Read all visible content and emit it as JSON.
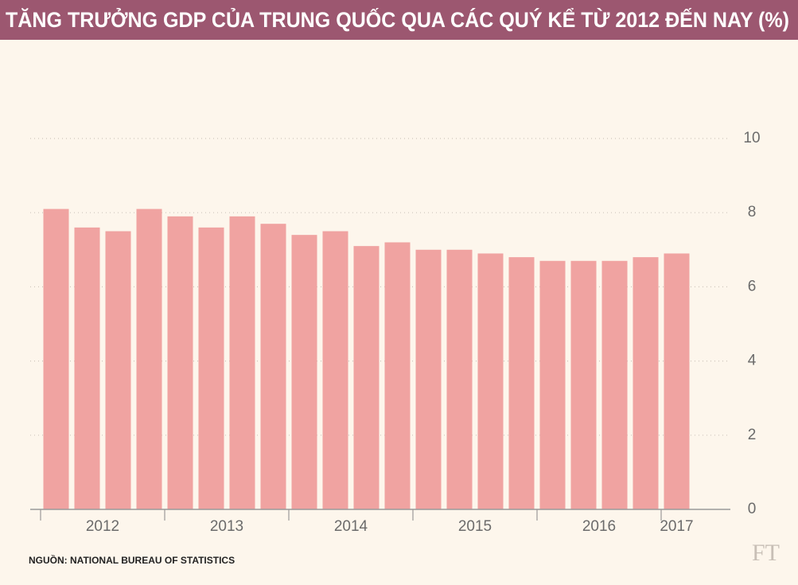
{
  "chart_data": {
    "type": "bar",
    "title": "TĂNG TRƯỞNG GDP CỦA TRUNG QUỐC QUA CÁC QUÝ KỂ TỪ 2012 ĐẾN NAY (%)",
    "source": "NGUỒN: NATIONAL BUREAU OF STATISTICS",
    "logo": "FT",
    "categories": [
      "2012",
      null,
      null,
      null,
      "2013",
      null,
      null,
      null,
      "2014",
      null,
      null,
      null,
      "2015",
      null,
      null,
      null,
      "2016",
      null,
      null,
      null,
      "2017"
    ],
    "values": [
      8.1,
      7.6,
      7.5,
      8.1,
      7.9,
      7.6,
      7.9,
      7.7,
      7.4,
      7.5,
      7.1,
      7.2,
      7.0,
      7.0,
      6.9,
      6.8,
      6.7,
      6.7,
      6.7,
      6.8,
      6.9
    ],
    "color": "#f0a3a1",
    "ylim": [
      0,
      10
    ],
    "yticks": [
      0,
      2,
      4,
      6,
      8,
      10
    ],
    "grid": true
  }
}
